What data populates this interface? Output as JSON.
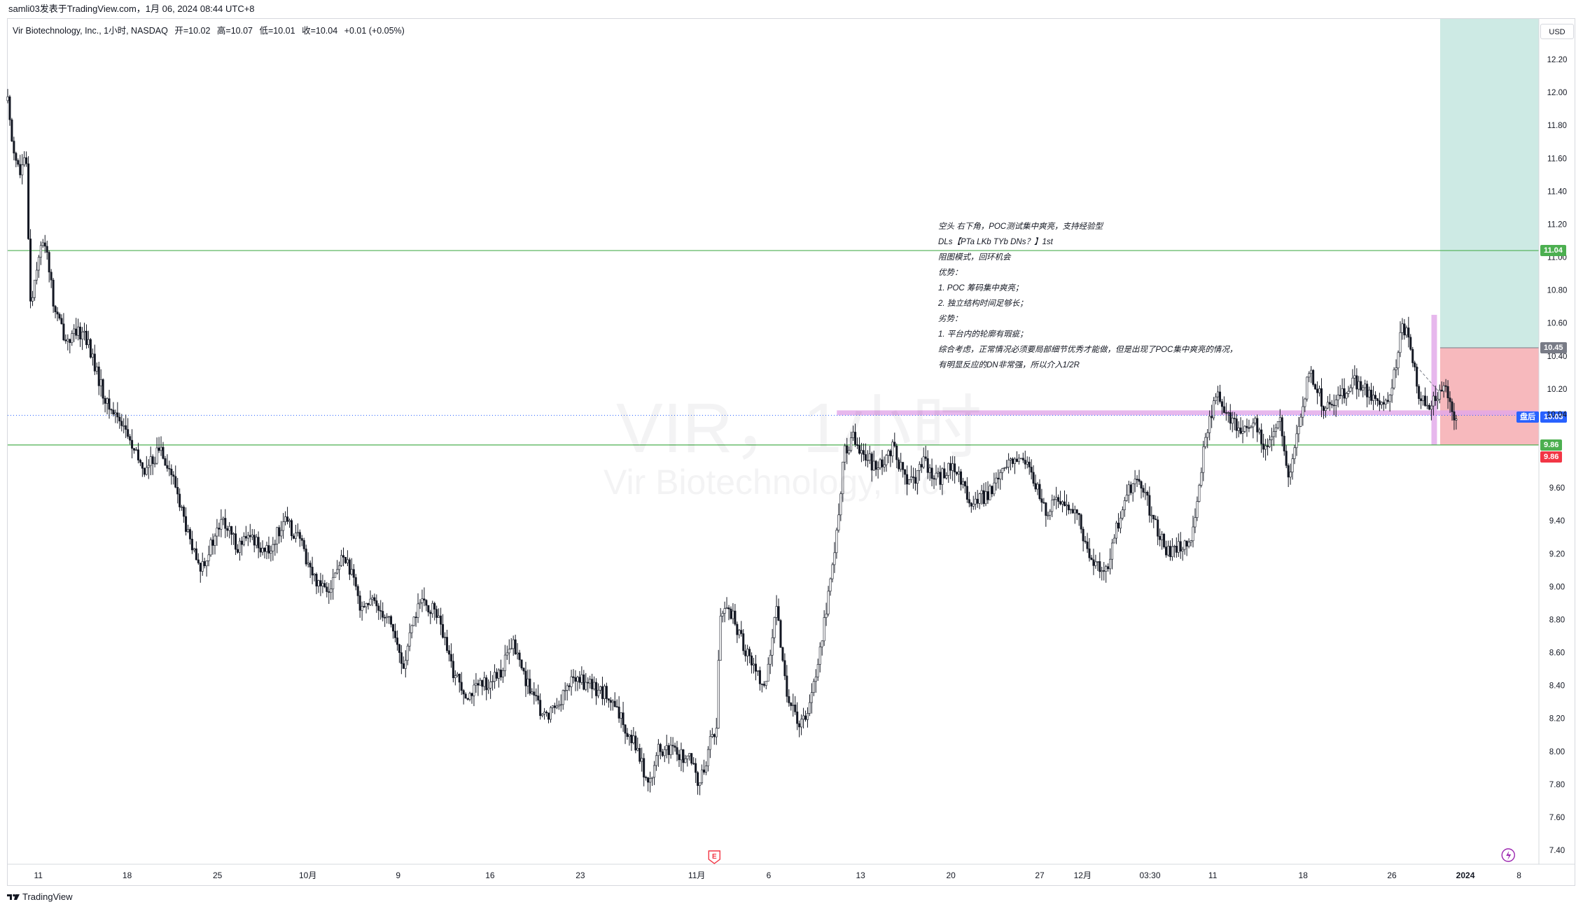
{
  "header": {
    "publisher": "samli03发表于TradingView.com，1月 06, 2024 08:44 UTC+8"
  },
  "legend": {
    "symbol": "Vir Biotechnology, Inc., 1小时, NASDAQ",
    "open": "开=10.02",
    "high": "高=10.07",
    "low": "低=10.01",
    "close": "收=10.04",
    "change": "+0.01 (+0.05%)"
  },
  "watermark": {
    "title": "VIR，1小时",
    "subtitle": "Vir Biotechnology, Inc."
  },
  "annotation_lines": [
    "空头 右下角，POC测试集中爽亮，支持经验型",
    "DLs【PTa LKb TYb DNs？】1st",
    "阻图模式，回环机会",
    "优势：",
    "1. POC 筹码集中爽亮；",
    "2. 独立结构时间足够长；",
    "劣势：",
    "1. 平台内的轮廓有瑕疵；",
    "综合考虑，正常情况必须要局部细节优秀才能做，但是出现了POC集中爽亮的情况，",
    "有明显反应的DN非常强，所以介入1/2R"
  ],
  "price_axis": {
    "currency": "USD",
    "last_price": "10.04",
    "after_hours_label": "盘后",
    "after_hours_price": "10.03"
  },
  "trade_levels": {
    "target": 11.04,
    "entry": 10.45,
    "stop": 9.86,
    "support": 9.86,
    "target_label": "11.04",
    "entry_label": "10.45",
    "support_label": "9.86",
    "stop_label": "9.86"
  },
  "events": {
    "earnings_label": "E"
  },
  "footer": {
    "brand": "TradingView"
  },
  "colors": {
    "up_candle": "#131722",
    "down_candle": "#131722",
    "target_zone": "#cdeae4",
    "stop_zone": "#f7b9bd",
    "level_line": "#4caf50",
    "poc_band": "#e1a6e8",
    "last_price_line": "#2962ff",
    "after_hours_tag": "#2962ff",
    "target_tag": "#4caf50",
    "stop_tag": "#f23645",
    "entry_tag": "#787b86"
  },
  "chart_data": {
    "type": "candlestick",
    "title": "",
    "ylim": [
      7.4,
      12.2
    ],
    "y_ticks": [
      7.4,
      7.6,
      7.8,
      8.0,
      8.2,
      8.4,
      8.6,
      8.8,
      9.0,
      9.2,
      9.4,
      9.6,
      10.04,
      10.2,
      10.4,
      10.6,
      10.8,
      11.0,
      11.2,
      11.4,
      11.6,
      11.8,
      12.0,
      12.2
    ],
    "y_tick_labels": [
      "7.40",
      "7.60",
      "7.80",
      "8.00",
      "8.20",
      "8.40",
      "8.60",
      "8.80",
      "9.00",
      "9.20",
      "9.40",
      "9.60",
      "10.04",
      "10.20",
      "10.40",
      "10.60",
      "10.80",
      "11.00",
      "11.20",
      "11.40",
      "11.60",
      "11.80",
      "12.00",
      "12.20"
    ],
    "x_tick_labels": [
      "11",
      "18",
      "25",
      "10月",
      "9",
      "16",
      "23",
      "11月",
      "6",
      "13",
      "20",
      "27",
      "12月",
      "03:30",
      "11",
      "18",
      "26",
      "2024",
      "8"
    ],
    "x_tick_positions": [
      0.02,
      0.078,
      0.137,
      0.196,
      0.255,
      0.315,
      0.374,
      0.45,
      0.497,
      0.557,
      0.616,
      0.674,
      0.702,
      0.746,
      0.787,
      0.846,
      0.904,
      0.952,
      0.987
    ],
    "close_path": [
      [
        0.0,
        11.95
      ],
      [
        0.003,
        11.7
      ],
      [
        0.008,
        11.5
      ],
      [
        0.012,
        11.6
      ],
      [
        0.015,
        10.7
      ],
      [
        0.02,
        11.02
      ],
      [
        0.025,
        11.1
      ],
      [
        0.03,
        10.7
      ],
      [
        0.038,
        10.5
      ],
      [
        0.05,
        10.55
      ],
      [
        0.058,
        10.3
      ],
      [
        0.065,
        10.1
      ],
      [
        0.075,
        10.0
      ],
      [
        0.083,
        9.8
      ],
      [
        0.09,
        9.7
      ],
      [
        0.1,
        9.85
      ],
      [
        0.11,
        9.6
      ],
      [
        0.118,
        9.3
      ],
      [
        0.125,
        9.1
      ],
      [
        0.133,
        9.25
      ],
      [
        0.14,
        9.4
      ],
      [
        0.15,
        9.25
      ],
      [
        0.16,
        9.3
      ],
      [
        0.17,
        9.2
      ],
      [
        0.18,
        9.4
      ],
      [
        0.19,
        9.3
      ],
      [
        0.2,
        9.05
      ],
      [
        0.21,
        9.0
      ],
      [
        0.22,
        9.2
      ],
      [
        0.23,
        8.9
      ],
      [
        0.24,
        8.9
      ],
      [
        0.25,
        8.8
      ],
      [
        0.258,
        8.5
      ],
      [
        0.268,
        8.9
      ],
      [
        0.28,
        8.85
      ],
      [
        0.29,
        8.5
      ],
      [
        0.3,
        8.35
      ],
      [
        0.31,
        8.4
      ],
      [
        0.32,
        8.45
      ],
      [
        0.33,
        8.65
      ],
      [
        0.34,
        8.4
      ],
      [
        0.35,
        8.2
      ],
      [
        0.36,
        8.3
      ],
      [
        0.37,
        8.45
      ],
      [
        0.38,
        8.4
      ],
      [
        0.39,
        8.35
      ],
      [
        0.4,
        8.2
      ],
      [
        0.41,
        8.05
      ],
      [
        0.418,
        7.8
      ],
      [
        0.425,
        8.0
      ],
      [
        0.435,
        8.0
      ],
      [
        0.445,
        7.95
      ],
      [
        0.452,
        7.8
      ],
      [
        0.46,
        8.1
      ],
      [
        0.463,
        8.15
      ],
      [
        0.465,
        8.8
      ],
      [
        0.47,
        8.9
      ],
      [
        0.478,
        8.7
      ],
      [
        0.488,
        8.5
      ],
      [
        0.495,
        8.4
      ],
      [
        0.502,
        8.85
      ],
      [
        0.51,
        8.3
      ],
      [
        0.518,
        8.15
      ],
      [
        0.525,
        8.35
      ],
      [
        0.53,
        8.6
      ],
      [
        0.535,
        8.9
      ],
      [
        0.54,
        9.2
      ],
      [
        0.546,
        9.8
      ],
      [
        0.552,
        9.9
      ],
      [
        0.56,
        9.8
      ],
      [
        0.568,
        9.7
      ],
      [
        0.578,
        9.85
      ],
      [
        0.588,
        9.6
      ],
      [
        0.598,
        9.75
      ],
      [
        0.608,
        9.65
      ],
      [
        0.618,
        9.75
      ],
      [
        0.628,
        9.5
      ],
      [
        0.638,
        9.55
      ],
      [
        0.648,
        9.65
      ],
      [
        0.658,
        9.8
      ],
      [
        0.668,
        9.7
      ],
      [
        0.678,
        9.45
      ],
      [
        0.688,
        9.55
      ],
      [
        0.698,
        9.45
      ],
      [
        0.708,
        9.15
      ],
      [
        0.718,
        9.1
      ],
      [
        0.728,
        9.5
      ],
      [
        0.738,
        9.7
      ],
      [
        0.748,
        9.4
      ],
      [
        0.758,
        9.2
      ],
      [
        0.768,
        9.25
      ],
      [
        0.775,
        9.35
      ],
      [
        0.782,
        9.9
      ],
      [
        0.79,
        10.2
      ],
      [
        0.798,
        10.0
      ],
      [
        0.806,
        9.95
      ],
      [
        0.814,
        10.0
      ],
      [
        0.822,
        9.8
      ],
      [
        0.83,
        10.05
      ],
      [
        0.836,
        9.65
      ],
      [
        0.842,
        9.9
      ],
      [
        0.85,
        10.3
      ],
      [
        0.86,
        10.1
      ],
      [
        0.87,
        10.15
      ],
      [
        0.88,
        10.25
      ],
      [
        0.89,
        10.15
      ],
      [
        0.9,
        10.1
      ],
      [
        0.906,
        10.3
      ],
      [
        0.91,
        10.6
      ],
      [
        0.915,
        10.5
      ],
      [
        0.922,
        10.15
      ],
      [
        0.93,
        10.1
      ],
      [
        0.938,
        10.25
      ],
      [
        0.946,
        10.0
      ]
    ],
    "series": [
      {
        "name": "POC",
        "values": [
          10.04,
          10.07
        ]
      }
    ]
  }
}
